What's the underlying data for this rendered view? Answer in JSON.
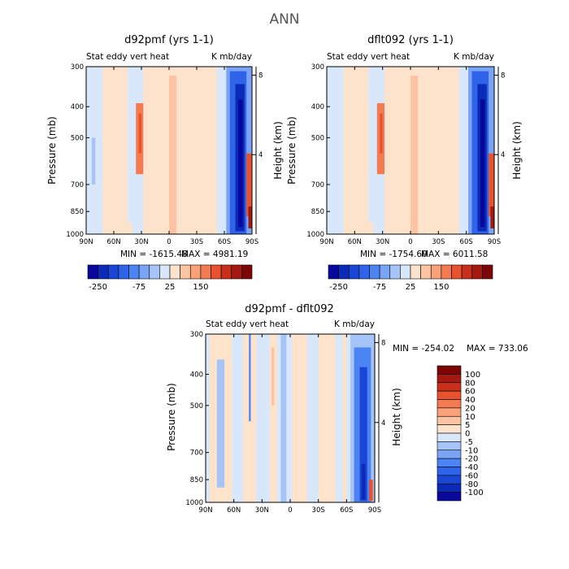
{
  "figure_title": "ANN",
  "colors": {
    "field_levels": [
      "#08089c",
      "#0c2ab8",
      "#1a46d6",
      "#2f64ea",
      "#4d84f4",
      "#7aa4f6",
      "#a6c4f8",
      "#d8e8fa",
      "#fde2cc",
      "#fcc4a2",
      "#f9a27a",
      "#f47a52",
      "#e8522e",
      "#c8301c",
      "#a41a10",
      "#7c0606"
    ],
    "diff_levels": [
      "#08089c",
      "#0c2ab8",
      "#1a46d6",
      "#2f64ea",
      "#4d84f4",
      "#7aa4f6",
      "#a6c4f8",
      "#d8e8fa",
      "#fde2cc",
      "#fcc4a2",
      "#f9a27a",
      "#f47a52",
      "#e8522e",
      "#c8301c",
      "#a41a10",
      "#7c0606"
    ]
  },
  "chart_data": [
    {
      "type": "heatmap",
      "title": "d92pmf (yrs 1-1)",
      "left_label": "Stat eddy vert heat",
      "right_label": "K mb/day",
      "ylabel": "Pressure (mb)",
      "y2label": "Height (km)",
      "x_ticks": [
        "90N",
        "60N",
        "30N",
        "0",
        "30S",
        "60S",
        "90S"
      ],
      "y_ticks": [
        "300",
        "400",
        "500",
        "700",
        "850",
        "1000"
      ],
      "y2_ticks": [
        "8",
        "4"
      ],
      "min_label": "MIN = -1615.48",
      "max_label": "MAX = 4981.19",
      "colorbar_labels": [
        "-250",
        "-75",
        "25",
        "150"
      ],
      "background": "#d8e8fa",
      "features": [
        {
          "lat": [
            72,
            45
          ],
          "p": [
            300,
            1000
          ],
          "color": "#fde2cc"
        },
        {
          "lat": [
            28,
            -52
          ],
          "p": [
            300,
            1000
          ],
          "color": "#fde2cc"
        },
        {
          "lat": [
            0,
            -8
          ],
          "p": [
            320,
            1000
          ],
          "color": "#fcc4a2"
        },
        {
          "lat": [
            36,
            28
          ],
          "p": [
            390,
            650
          ],
          "color": "#f47a52"
        },
        {
          "lat": [
            33,
            30
          ],
          "p": [
            420,
            560
          ],
          "color": "#e8522e"
        },
        {
          "lat": [
            84,
            80
          ],
          "p": [
            500,
            700
          ],
          "color": "#a6c4f8"
        },
        {
          "lat": [
            -62,
            -90
          ],
          "p": [
            300,
            1000
          ],
          "color": "#7aa4f6"
        },
        {
          "lat": [
            -66,
            -84
          ],
          "p": [
            310,
            1000
          ],
          "color": "#2f64ea"
        },
        {
          "lat": [
            -72,
            -82
          ],
          "p": [
            340,
            980
          ],
          "color": "#0c2ab8"
        },
        {
          "lat": [
            -75,
            -80
          ],
          "p": [
            380,
            950
          ],
          "color": "#08089c"
        },
        {
          "lat": [
            -84,
            -90
          ],
          "p": [
            560,
            880
          ],
          "color": "#e8522e"
        },
        {
          "lat": [
            -86,
            -90
          ],
          "p": [
            820,
            960
          ],
          "color": "#a41a10"
        },
        {
          "lat": [
            60,
            40
          ],
          "p": [
            920,
            1000
          ],
          "color": "#fde2cc"
        }
      ]
    },
    {
      "type": "heatmap",
      "title": "dflt092 (yrs 1-1)",
      "left_label": "Stat eddy vert heat",
      "right_label": "K mb/day",
      "ylabel": "Pressure (mb)",
      "y2label": "Height (km)",
      "x_ticks": [
        "90N",
        "60N",
        "30N",
        "0",
        "30S",
        "60S",
        "90S"
      ],
      "y_ticks": [
        "300",
        "400",
        "500",
        "700",
        "850",
        "1000"
      ],
      "y2_ticks": [
        "8",
        "4"
      ],
      "min_label": "MIN = -1754.60",
      "max_label": "MAX = 6011.58",
      "colorbar_labels": [
        "-250",
        "-75",
        "25",
        "150"
      ],
      "background": "#d8e8fa",
      "features": [
        {
          "lat": [
            72,
            45
          ],
          "p": [
            300,
            1000
          ],
          "color": "#fde2cc"
        },
        {
          "lat": [
            28,
            -52
          ],
          "p": [
            300,
            1000
          ],
          "color": "#fde2cc"
        },
        {
          "lat": [
            0,
            -8
          ],
          "p": [
            320,
            1000
          ],
          "color": "#fcc4a2"
        },
        {
          "lat": [
            36,
            28
          ],
          "p": [
            390,
            650
          ],
          "color": "#f47a52"
        },
        {
          "lat": [
            33,
            30
          ],
          "p": [
            420,
            560
          ],
          "color": "#e8522e"
        },
        {
          "lat": [
            -62,
            -90
          ],
          "p": [
            300,
            1000
          ],
          "color": "#7aa4f6"
        },
        {
          "lat": [
            -66,
            -84
          ],
          "p": [
            310,
            1000
          ],
          "color": "#2f64ea"
        },
        {
          "lat": [
            -72,
            -82
          ],
          "p": [
            340,
            980
          ],
          "color": "#0c2ab8"
        },
        {
          "lat": [
            -75,
            -80
          ],
          "p": [
            380,
            950
          ],
          "color": "#08089c"
        },
        {
          "lat": [
            -84,
            -90
          ],
          "p": [
            560,
            880
          ],
          "color": "#e8522e"
        },
        {
          "lat": [
            -86,
            -90
          ],
          "p": [
            820,
            960
          ],
          "color": "#a41a10"
        },
        {
          "lat": [
            60,
            40
          ],
          "p": [
            920,
            1000
          ],
          "color": "#fde2cc"
        }
      ]
    },
    {
      "type": "heatmap",
      "title": "d92pmf - dflt092",
      "left_label": "Stat eddy vert heat",
      "right_label": "K mb/day",
      "ylabel": "Pressure (mb)",
      "y2label": "Height (km)",
      "x_ticks": [
        "90N",
        "60N",
        "30N",
        "0",
        "30S",
        "60S",
        "90S"
      ],
      "y_ticks": [
        "300",
        "400",
        "500",
        "700",
        "850",
        "1000"
      ],
      "y2_ticks": [
        "8",
        "4"
      ],
      "min_label": "MIN = -254.02",
      "max_label": "MAX = 733.06",
      "colorbar_labels": [
        "100",
        "80",
        "60",
        "40",
        "20",
        "10",
        "5",
        "0",
        "-5",
        "-10",
        "-20",
        "-40",
        "-60",
        "-80",
        "-100"
      ],
      "background": "#d8e8fa",
      "features": [
        {
          "lat": [
            86,
            62
          ],
          "p": [
            300,
            1000
          ],
          "color": "#fde2cc"
        },
        {
          "lat": [
            78,
            70
          ],
          "p": [
            360,
            900
          ],
          "color": "#a6c4f8"
        },
        {
          "lat": [
            50,
            36
          ],
          "p": [
            300,
            1000
          ],
          "color": "#fde2cc"
        },
        {
          "lat": [
            44,
            42
          ],
          "p": [
            300,
            560
          ],
          "color": "#4d84f4"
        },
        {
          "lat": [
            22,
            14
          ],
          "p": [
            300,
            1000
          ],
          "color": "#fde2cc"
        },
        {
          "lat": [
            20,
            17
          ],
          "p": [
            330,
            500
          ],
          "color": "#fcc4a2"
        },
        {
          "lat": [
            10,
            4
          ],
          "p": [
            300,
            1000
          ],
          "color": "#a6c4f8"
        },
        {
          "lat": [
            -2,
            -18
          ],
          "p": [
            300,
            1000
          ],
          "color": "#fde2cc"
        },
        {
          "lat": [
            -30,
            -48
          ],
          "p": [
            300,
            1000
          ],
          "color": "#fde2cc"
        },
        {
          "lat": [
            -56,
            -60
          ],
          "p": [
            300,
            1000
          ],
          "color": "#fde2cc"
        },
        {
          "lat": [
            -64,
            -90
          ],
          "p": [
            300,
            1000
          ],
          "color": "#a6c4f8"
        },
        {
          "lat": [
            -68,
            -86
          ],
          "p": [
            330,
            1000
          ],
          "color": "#4d84f4"
        },
        {
          "lat": [
            -74,
            -82
          ],
          "p": [
            380,
            990
          ],
          "color": "#1a46d6"
        },
        {
          "lat": [
            -76,
            -80
          ],
          "p": [
            760,
            980
          ],
          "color": "#0c2ab8"
        },
        {
          "lat": [
            -84,
            -88
          ],
          "p": [
            850,
            990
          ],
          "color": "#e8522e"
        }
      ]
    }
  ]
}
